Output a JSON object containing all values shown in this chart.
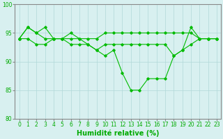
{
  "series": [
    {
      "x": [
        0,
        1,
        2,
        3,
        4,
        5,
        6,
        7,
        8,
        9,
        10,
        11,
        12,
        13,
        14,
        15,
        16,
        17,
        18,
        19,
        20,
        21,
        22,
        23
      ],
      "y": [
        94,
        96,
        95,
        94,
        94,
        94,
        94,
        94,
        93,
        92,
        91,
        92,
        88,
        85,
        85,
        87,
        87,
        87,
        91,
        92,
        96,
        94,
        94,
        94
      ]
    },
    {
      "x": [
        0,
        1,
        2,
        3,
        4,
        5,
        6,
        7,
        8,
        9,
        10,
        11,
        12,
        13,
        14,
        15,
        16,
        17,
        18,
        19,
        20,
        21,
        22,
        23
      ],
      "y": [
        94,
        96,
        95,
        96,
        94,
        94,
        95,
        94,
        94,
        94,
        95,
        95,
        95,
        95,
        95,
        95,
        95,
        95,
        95,
        95,
        95,
        94,
        94,
        94
      ]
    },
    {
      "x": [
        0,
        1,
        2,
        3,
        4,
        5,
        6,
        7,
        8,
        9,
        10,
        11,
        12,
        13,
        14,
        15,
        16,
        17,
        18,
        19,
        20,
        21,
        22,
        23
      ],
      "y": [
        94,
        94,
        93,
        93,
        94,
        94,
        93,
        93,
        93,
        92,
        93,
        93,
        93,
        93,
        93,
        93,
        93,
        93,
        91,
        92,
        93,
        94,
        94,
        94
      ]
    }
  ],
  "line_color": "#00bb00",
  "marker": "D",
  "markersize": 1.8,
  "linewidth": 0.8,
  "xlabel": "Humidité relative (%)",
  "xlabel_fontsize": 7,
  "xlabel_color": "#00aa00",
  "xlim": [
    -0.5,
    23.5
  ],
  "ylim": [
    80,
    100
  ],
  "yticks": [
    80,
    85,
    90,
    95,
    100
  ],
  "xticks": [
    0,
    1,
    2,
    3,
    4,
    5,
    6,
    7,
    8,
    9,
    10,
    11,
    12,
    13,
    14,
    15,
    16,
    17,
    18,
    19,
    20,
    21,
    22,
    23
  ],
  "xtick_labels": [
    "0",
    "1",
    "2",
    "3",
    "4",
    "5",
    "6",
    "7",
    "8",
    "9",
    "10",
    "11",
    "12",
    "13",
    "14",
    "15",
    "16",
    "17",
    "18",
    "19",
    "20",
    "21",
    "22",
    "23"
  ],
  "tick_fontsize": 5.5,
  "tick_color": "#00aa00",
  "bg_color": "#d8f0f0",
  "grid_color": "#b0d8d8",
  "grid_linewidth": 0.5,
  "spine_color": "#888888"
}
